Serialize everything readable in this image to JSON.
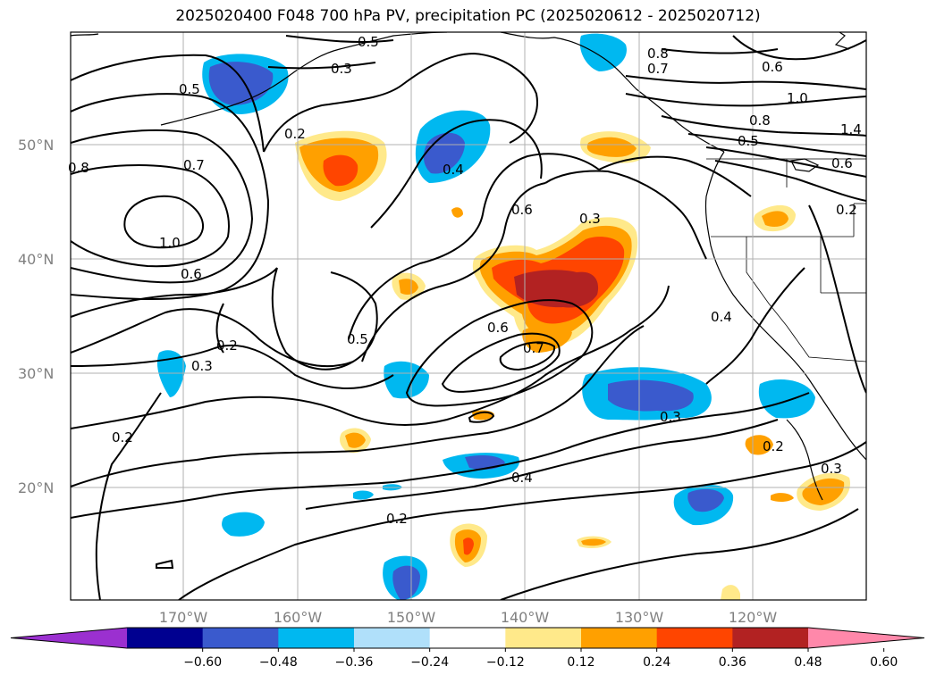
{
  "title": "2025020400 F048 700 hPa PV, precipitation PC (2025020612 - 2025020712)",
  "lat_labels": [
    "50°N",
    "40°N",
    "30°N",
    "20°N"
  ],
  "lon_labels": [
    "170°W",
    "160°W",
    "150°W",
    "140°W",
    "130°W",
    "120°W"
  ],
  "colorbar": {
    "ticks": [
      "−0.60",
      "−0.48",
      "−0.36",
      "−0.24",
      "−0.12",
      "0.12",
      "0.24",
      "0.36",
      "0.48",
      "0.60"
    ],
    "colors": [
      "#9b30d0",
      "#000090",
      "#3a5acd",
      "#00b8f0",
      "#b0e0fa",
      "#ffffff",
      "#ffe98a",
      "#ffa000",
      "#ff4500",
      "#b22222",
      "#ff88aa"
    ]
  },
  "contour_labels": [
    "0.5",
    "0.3",
    "0.8",
    "0.7",
    "0.6",
    "0.5",
    "0.2",
    "0.8",
    "0.7",
    "1.0",
    "0.6",
    "0.4",
    "0.6",
    "0.3",
    "0.8",
    "0.5",
    "0.5",
    "0.2",
    "0.3",
    "0.6",
    "0.7",
    "0.4",
    "0.3",
    "0.2",
    "0.4",
    "0.2",
    "0.2",
    "0.3",
    "1.0",
    "1.4",
    "0.6",
    "0.2"
  ]
}
